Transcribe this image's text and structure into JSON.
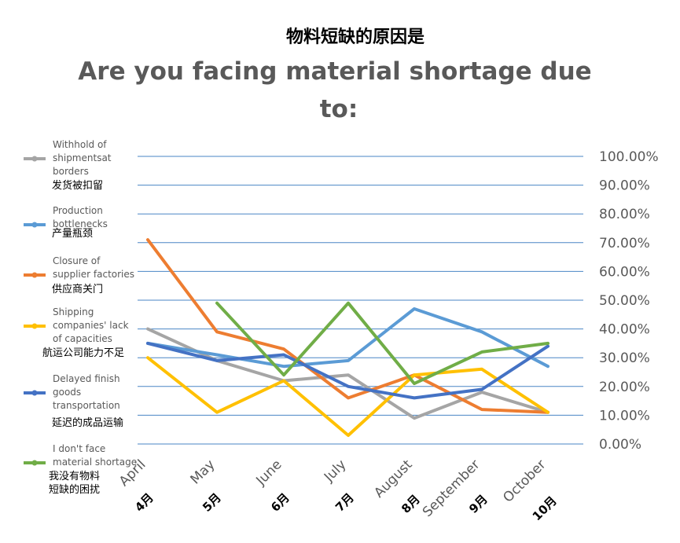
{
  "chart_data": {
    "type": "line",
    "title_cn": "物料短缺的原因是",
    "title_en": [
      "Are you facing material shortage due",
      "to:"
    ],
    "xlabel": "",
    "ylabel": "",
    "ylim": [
      0,
      100
    ],
    "yticks": [
      "0.00%",
      "10.00%",
      "20.00%",
      "30.00%",
      "40.00%",
      "50.00%",
      "60.00%",
      "70.00%",
      "80.00%",
      "90.00%",
      "100.00%"
    ],
    "grid": true,
    "legend_position": "left",
    "categories": [
      {
        "en": "April",
        "cn": "4月"
      },
      {
        "en": "May",
        "cn": "5月"
      },
      {
        "en": "June",
        "cn": "6月"
      },
      {
        "en": "July",
        "cn": "7月"
      },
      {
        "en": "August",
        "cn": "8月"
      },
      {
        "en": "September",
        "cn": "9月"
      },
      {
        "en": "October",
        "cn": "10月"
      }
    ],
    "series": [
      {
        "name_en": [
          "Withhold of",
          "shipmentsat",
          "borders"
        ],
        "name_cn": "发货被扣留",
        "color": "#a5a5a5",
        "values": [
          40,
          29,
          22,
          24,
          9,
          18,
          11
        ]
      },
      {
        "name_en": [
          "Production",
          "bottlenecks"
        ],
        "name_cn": "产量瓶颈",
        "color": "#5b9bd5",
        "values": [
          35,
          31,
          27,
          29,
          47,
          39,
          27
        ]
      },
      {
        "name_en": [
          "Closure of",
          "supplier factories"
        ],
        "name_cn": "供应商关门",
        "color": "#ed7d31",
        "values": [
          71,
          39,
          33,
          16,
          24,
          12,
          11
        ]
      },
      {
        "name_en": [
          "Shipping",
          "companies' lack",
          "of capacities"
        ],
        "name_cn": "航运公司能力不足",
        "color": "#ffc000",
        "values": [
          30,
          11,
          22,
          3,
          24,
          26,
          11
        ]
      },
      {
        "name_en": [
          "Delayed finish",
          "goods",
          "transportation"
        ],
        "name_cn": "延迟的成品运输",
        "color": "#4472c4",
        "values": [
          35,
          29,
          31,
          20,
          16,
          19,
          34
        ]
      },
      {
        "name_en": [
          "I don't face",
          "material shortage"
        ],
        "name_cn": [
          "我没有物料",
          "短缺的困扰"
        ],
        "color": "#70ad47",
        "values": [
          null,
          49,
          24,
          49,
          21,
          32,
          35
        ]
      }
    ]
  }
}
